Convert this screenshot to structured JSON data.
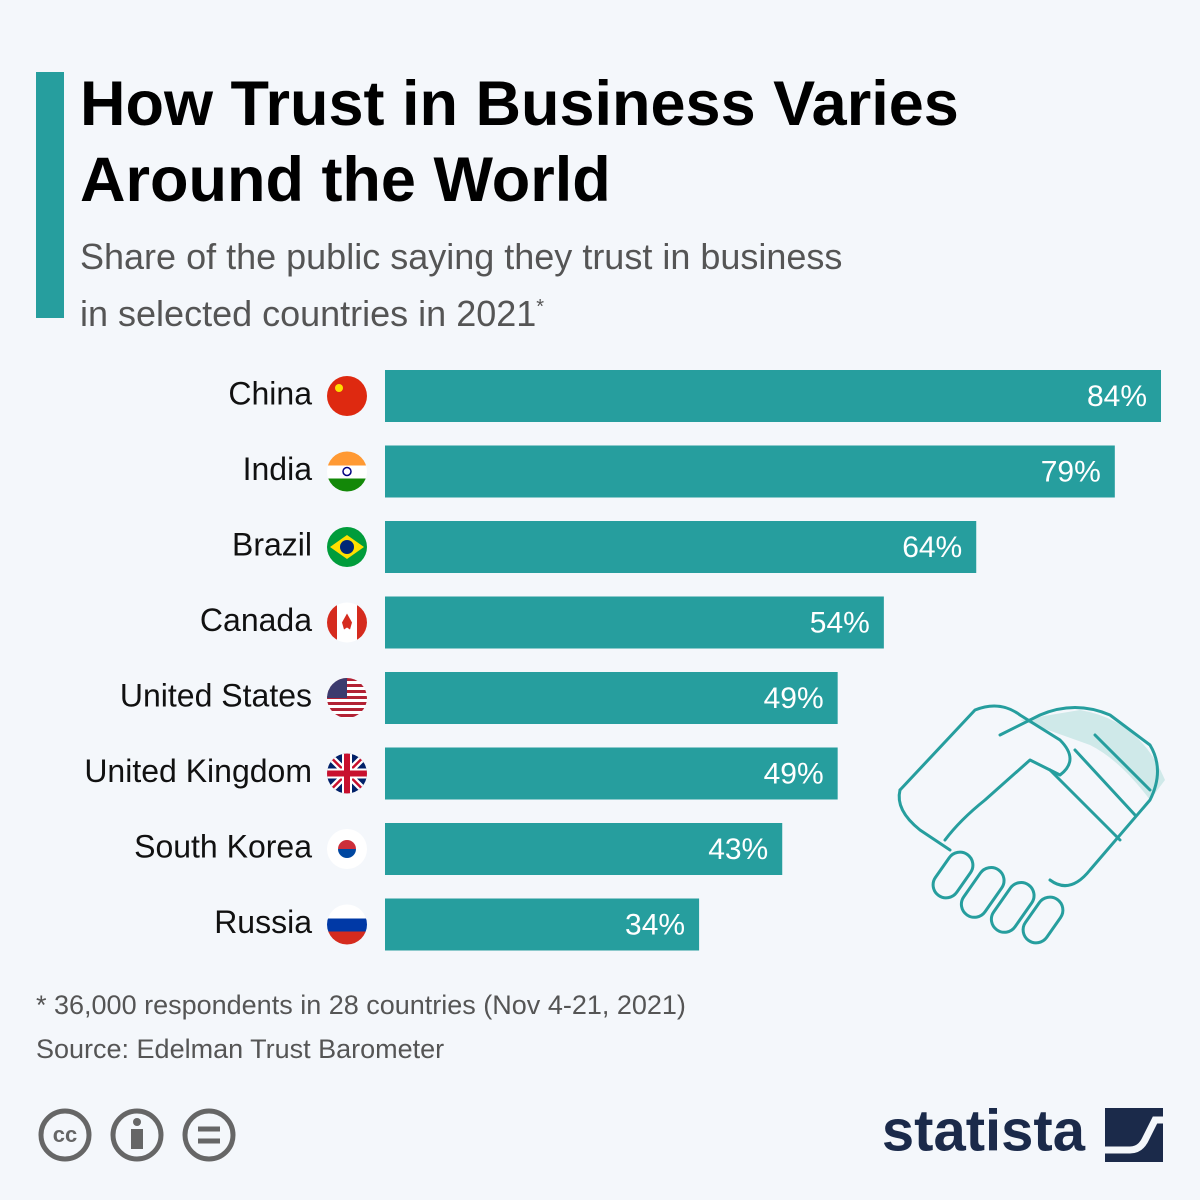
{
  "chart_data": {
    "type": "bar",
    "orientation": "horizontal",
    "title": [
      "How Trust in Business Varies",
      "Around the World"
    ],
    "subtitle": [
      "Share of the public saying they trust in business",
      "in selected countries in 2021"
    ],
    "subtitle_marker": "*",
    "categories": [
      "China",
      "India",
      "Brazil",
      "Canada",
      "United States",
      "United Kingdom",
      "South Korea",
      "Russia"
    ],
    "values": [
      84,
      79,
      64,
      54,
      49,
      49,
      43,
      34
    ],
    "value_labels": [
      "84%",
      "79%",
      "64%",
      "54%",
      "49%",
      "49%",
      "43%",
      "34%"
    ],
    "color": "#269e9e",
    "footnote": "* 36,000 respondents in 28 countries (Nov 4-21, 2021)",
    "source": "Source: Edelman Trust Barometer",
    "license_label": "cc",
    "brand": "statista"
  }
}
